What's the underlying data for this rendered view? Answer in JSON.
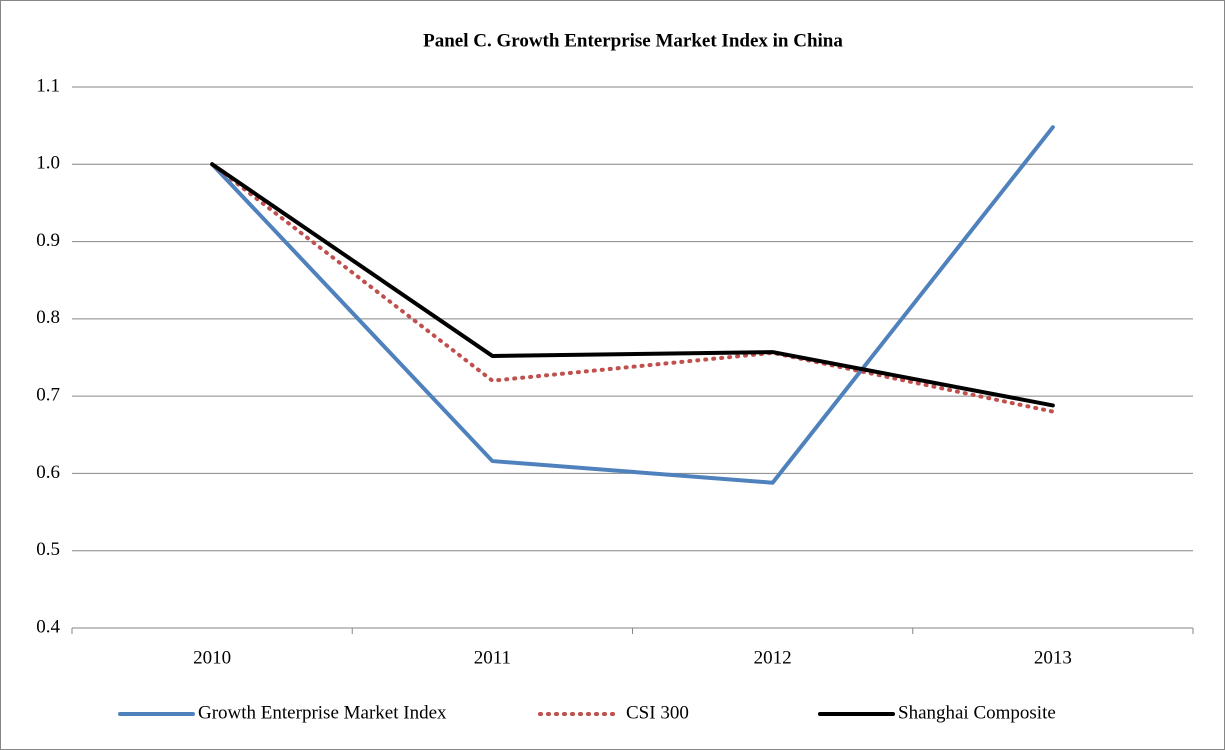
{
  "chart_data": {
    "type": "line",
    "title": "Panel C. Growth Enterprise Market Index in China",
    "categories": [
      "2010",
      "2011",
      "2012",
      "2013"
    ],
    "series": [
      {
        "name": "Growth Enterprise Market Index",
        "color": "#4f81bd",
        "style": "solid",
        "values": [
          1.0,
          0.616,
          0.588,
          1.048
        ]
      },
      {
        "name": "CSI 300",
        "color": "#c0504d",
        "style": "dotted",
        "values": [
          1.0,
          0.72,
          0.756,
          0.68
        ]
      },
      {
        "name": "Shanghai Composite",
        "color": "#000000",
        "style": "solid",
        "values": [
          1.0,
          0.752,
          0.757,
          0.688
        ]
      }
    ],
    "ylim": [
      0.4,
      1.1
    ],
    "yticks": [
      0.4,
      0.5,
      0.6,
      0.7,
      0.8,
      0.9,
      {
        "value": 1.0,
        "label": "1.0"
      },
      1.1
    ],
    "grid": true,
    "legend": "bottom"
  }
}
